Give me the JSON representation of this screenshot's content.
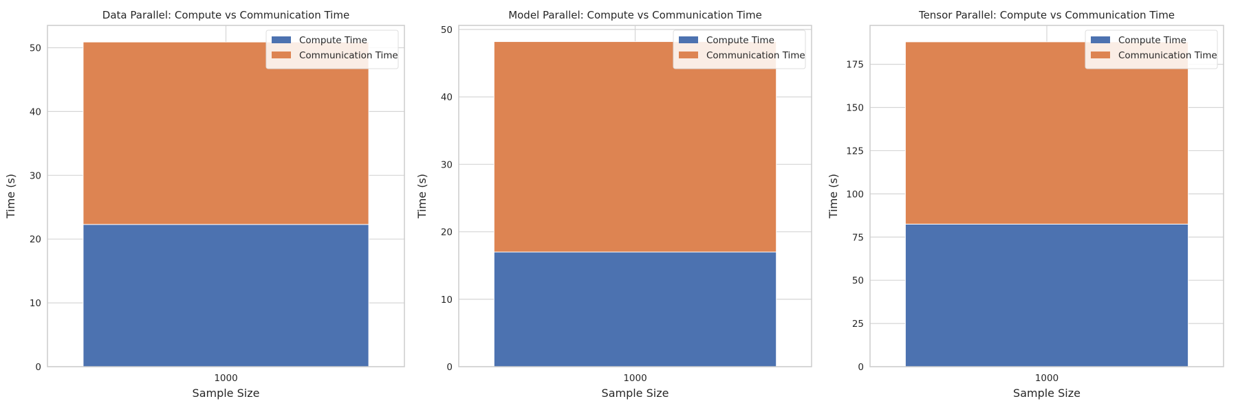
{
  "colors": {
    "compute": "#4c72b0",
    "communication": "#dd8452",
    "grid": "#d5d5d5",
    "spine": "#cccccc",
    "text": "#262626"
  },
  "chart_data": [
    {
      "type": "bar",
      "stacked": true,
      "title": "Data Parallel: Compute vs Communication Time",
      "xlabel": "Sample Size",
      "ylabel": "Time (s)",
      "categories": [
        "1000"
      ],
      "series": [
        {
          "name": "Compute Time",
          "values": [
            22.3
          ]
        },
        {
          "name": "Communication Time",
          "values": [
            28.6
          ]
        }
      ],
      "ylim": [
        0,
        53.5
      ],
      "yticks": [
        0,
        10,
        20,
        30,
        40,
        50
      ],
      "grid": true,
      "legend": "upper right"
    },
    {
      "type": "bar",
      "stacked": true,
      "title": "Model Parallel: Compute vs Communication Time",
      "xlabel": "Sample Size",
      "ylabel": "Time (s)",
      "categories": [
        "1000"
      ],
      "series": [
        {
          "name": "Compute Time",
          "values": [
            17.0
          ]
        },
        {
          "name": "Communication Time",
          "values": [
            31.2
          ]
        }
      ],
      "ylim": [
        0,
        50.6
      ],
      "yticks": [
        0,
        10,
        20,
        30,
        40,
        50
      ],
      "grid": true,
      "legend": "upper right"
    },
    {
      "type": "bar",
      "stacked": true,
      "title": "Tensor Parallel: Compute vs Communication Time",
      "xlabel": "Sample Size",
      "ylabel": "Time (s)",
      "categories": [
        "1000"
      ],
      "series": [
        {
          "name": "Compute Time",
          "values": [
            82.5
          ]
        },
        {
          "name": "Communication Time",
          "values": [
            105.5
          ]
        }
      ],
      "ylim": [
        0,
        197.5
      ],
      "yticks": [
        0,
        25,
        50,
        75,
        100,
        125,
        150,
        175
      ],
      "grid": true,
      "legend": "upper right"
    }
  ]
}
